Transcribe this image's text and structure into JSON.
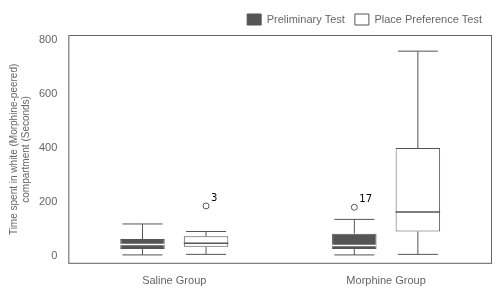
{
  "chart_data": {
    "type": "box",
    "categories": [
      "Saline Group",
      "Morphine Group"
    ],
    "ylabel": "Time spent in white (Morphine-peered)\ncompartment (Seconds)",
    "series": [
      {
        "name": "Preliminary Test",
        "color": "#555555",
        "values": [
          {
            "q1": 25,
            "median": 42,
            "q3": 62,
            "whisker_low": 3,
            "whisker_high": 118,
            "outliers": []
          },
          {
            "q1": 25,
            "median": 38,
            "q3": 82,
            "whisker_low": 3,
            "whisker_high": 135,
            "outliers": [
              180
            ]
          }
        ]
      },
      {
        "name": "Place Preference Test",
        "color": "#ffffff",
        "values": [
          {
            "q1": 33,
            "median": 46,
            "q3": 72,
            "whisker_low": 5,
            "whisker_high": 90,
            "outliers": [
              185
            ]
          },
          {
            "q1": 90,
            "median": 162,
            "q3": 400,
            "whisker_low": 5,
            "whisker_high": 760,
            "outliers": []
          }
        ]
      }
    ],
    "annotations": [
      {
        "text": "3",
        "category": "Saline Group",
        "series": "Place Preference Test",
        "value": 185
      },
      {
        "text": "17",
        "category": "Morphine Group",
        "series": "Preliminary Test",
        "value": 180
      }
    ],
    "ylim": [
      -30,
      820
    ],
    "yticks": [
      0,
      200,
      400,
      600,
      800
    ],
    "grid": false,
    "legend": "upper right"
  }
}
